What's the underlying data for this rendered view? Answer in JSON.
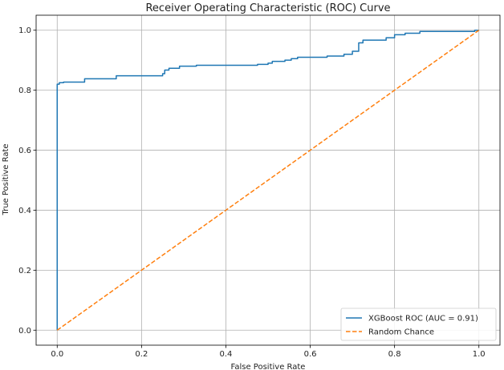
{
  "chart_data": {
    "type": "line",
    "title": "Receiver Operating Characteristic (ROC) Curve",
    "xlabel": "False Positive Rate",
    "ylabel": "True Positive Rate",
    "xlim": [
      -0.05,
      1.05
    ],
    "ylim": [
      -0.05,
      1.05
    ],
    "grid": true,
    "legend_position": "lower-right",
    "xticks": [
      "0.0",
      "0.2",
      "0.4",
      "0.6",
      "0.8",
      "1.0"
    ],
    "yticks": [
      "0.0",
      "0.2",
      "0.4",
      "0.6",
      "0.8",
      "1.0"
    ],
    "series": [
      {
        "name": "XGBoost ROC (AUC = 0.91)",
        "color": "#1f77b4",
        "style": "solid",
        "x": [
          0.0,
          0.0,
          0.005,
          0.005,
          0.015,
          0.015,
          0.065,
          0.065,
          0.14,
          0.14,
          0.25,
          0.25,
          0.255,
          0.255,
          0.265,
          0.265,
          0.29,
          0.29,
          0.33,
          0.33,
          0.475,
          0.475,
          0.5,
          0.5,
          0.51,
          0.51,
          0.54,
          0.54,
          0.555,
          0.555,
          0.57,
          0.57,
          0.64,
          0.64,
          0.68,
          0.68,
          0.7,
          0.7,
          0.715,
          0.715,
          0.725,
          0.725,
          0.78,
          0.78,
          0.8,
          0.8,
          0.825,
          0.825,
          0.86,
          0.86,
          0.99,
          0.99,
          1.0
        ],
        "y": [
          0.0,
          0.82,
          0.82,
          0.825,
          0.825,
          0.827,
          0.827,
          0.838,
          0.838,
          0.848,
          0.848,
          0.855,
          0.855,
          0.867,
          0.867,
          0.873,
          0.873,
          0.88,
          0.88,
          0.883,
          0.883,
          0.886,
          0.886,
          0.89,
          0.89,
          0.896,
          0.896,
          0.9,
          0.9,
          0.905,
          0.905,
          0.91,
          0.91,
          0.914,
          0.914,
          0.92,
          0.92,
          0.93,
          0.93,
          0.958,
          0.958,
          0.967,
          0.967,
          0.975,
          0.975,
          0.985,
          0.985,
          0.99,
          0.99,
          0.996,
          0.996,
          1.0,
          1.0
        ]
      },
      {
        "name": "Random Chance",
        "color": "#ff7f0e",
        "style": "dashed",
        "x": [
          0.0,
          1.0
        ],
        "y": [
          0.0,
          1.0
        ]
      }
    ]
  }
}
